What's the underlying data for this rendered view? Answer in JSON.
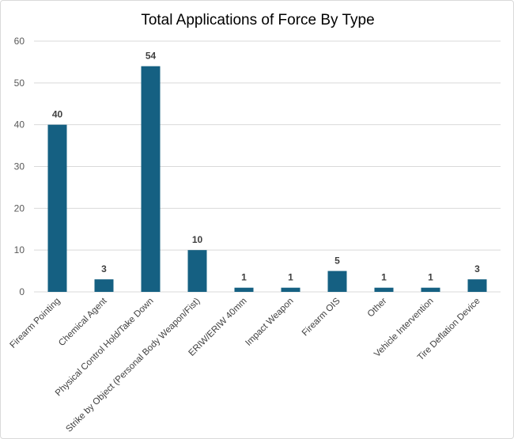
{
  "chart_data": {
    "type": "bar",
    "title": "Total Applications of Force By Type",
    "xlabel": "",
    "ylabel": "",
    "categories": [
      "Firearm Pointing",
      "Chemical Agent",
      "Physical Control Hold/Take Down",
      "Strike by Object (Personal Body Weapon/Fist)",
      "ERIW/ERIW 40mm",
      "Impact Weapon",
      "Firearm OIS",
      "Other",
      "Vehicle Intervention",
      "Tire Deflation Device"
    ],
    "values": [
      40,
      3,
      54,
      10,
      1,
      1,
      5,
      1,
      1,
      3
    ],
    "ylim": [
      0,
      60
    ],
    "yticks": [
      0,
      10,
      20,
      30,
      40,
      50,
      60
    ],
    "grid": true,
    "legend": "none",
    "bar_color": "#156082",
    "grid_color": "#d9d9d9"
  }
}
